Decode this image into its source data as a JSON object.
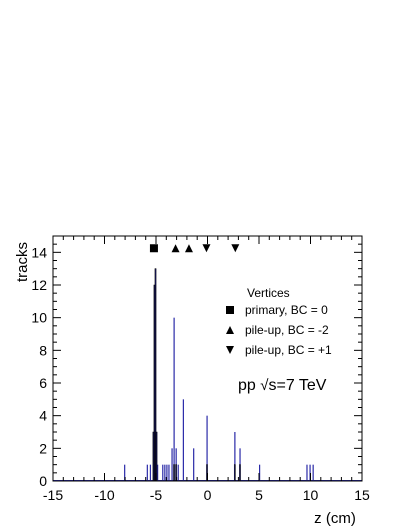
{
  "chart_data": {
    "type": "histogram",
    "xlabel": "z (cm)",
    "ylabel": "tracks",
    "xlim": [
      -15,
      15
    ],
    "ylim": [
      0,
      15
    ],
    "x_ticks": [
      -15,
      -10,
      -5,
      0,
      5,
      10,
      15
    ],
    "y_ticks": [
      0,
      2,
      4,
      6,
      8,
      10,
      12,
      14
    ],
    "bin_width": 0.1,
    "series": [
      {
        "style": "filled-blue-bars",
        "color": "#2a2aa8",
        "bins": [
          {
            "x": -8.1,
            "value": 1
          },
          {
            "x": -5.9,
            "value": 1
          },
          {
            "x": -5.6,
            "value": 1
          },
          {
            "x": -5.3,
            "value": 3
          },
          {
            "x": -5.2,
            "value": 12
          },
          {
            "x": -5.1,
            "value": 13
          },
          {
            "x": -5.0,
            "value": 3
          },
          {
            "x": -4.9,
            "value": 1
          },
          {
            "x": -4.4,
            "value": 1
          },
          {
            "x": -4.2,
            "value": 1
          },
          {
            "x": -4.0,
            "value": 1
          },
          {
            "x": -3.8,
            "value": 1
          },
          {
            "x": -3.5,
            "value": 2
          },
          {
            "x": -3.3,
            "value": 10
          },
          {
            "x": -3.1,
            "value": 2
          },
          {
            "x": -2.9,
            "value": 1
          },
          {
            "x": -2.4,
            "value": 5
          },
          {
            "x": -1.4,
            "value": 2
          },
          {
            "x": -0.1,
            "value": 4
          },
          {
            "x": 2.6,
            "value": 3
          },
          {
            "x": 3.1,
            "value": 2
          },
          {
            "x": 5.0,
            "value": 1
          },
          {
            "x": 9.6,
            "value": 1
          },
          {
            "x": 9.9,
            "value": 1
          },
          {
            "x": 10.2,
            "value": 1
          }
        ]
      },
      {
        "style": "outline-black-steps",
        "color": "#000000",
        "bins": [
          {
            "x": -5.3,
            "value": 3
          },
          {
            "x": -5.2,
            "value": 12
          },
          {
            "x": -5.1,
            "value": 13
          },
          {
            "x": -5.0,
            "value": 3
          },
          {
            "x": -3.3,
            "value": 1
          },
          {
            "x": -3.1,
            "value": 1
          },
          {
            "x": -0.1,
            "value": 1
          },
          {
            "x": 2.6,
            "value": 1
          },
          {
            "x": 3.1,
            "value": 1
          }
        ]
      }
    ],
    "vertex_markers": [
      {
        "symbol": "square",
        "x": -5.2,
        "y": 14.25
      },
      {
        "symbol": "triangle-up",
        "x": -3.1,
        "y": 14.25
      },
      {
        "symbol": "triangle-up",
        "x": -1.8,
        "y": 14.25
      },
      {
        "symbol": "triangle-down",
        "x": -0.1,
        "y": 14.25
      },
      {
        "symbol": "triangle-down",
        "x": 2.7,
        "y": 14.25
      }
    ],
    "legend": {
      "placement": "right",
      "title": "Vertices",
      "entries": [
        {
          "symbol": "square",
          "label": "primary, BC = 0"
        },
        {
          "symbol": "triangle-up",
          "label": "pile-up,  BC = -2"
        },
        {
          "symbol": "triangle-down",
          "label": "pile-up,  BC = +1"
        }
      ]
    },
    "annotation": {
      "prefix": "pp ",
      "sqrt_symbol": "√",
      "radicand": "s",
      "suffix": "=7 TeV"
    }
  }
}
